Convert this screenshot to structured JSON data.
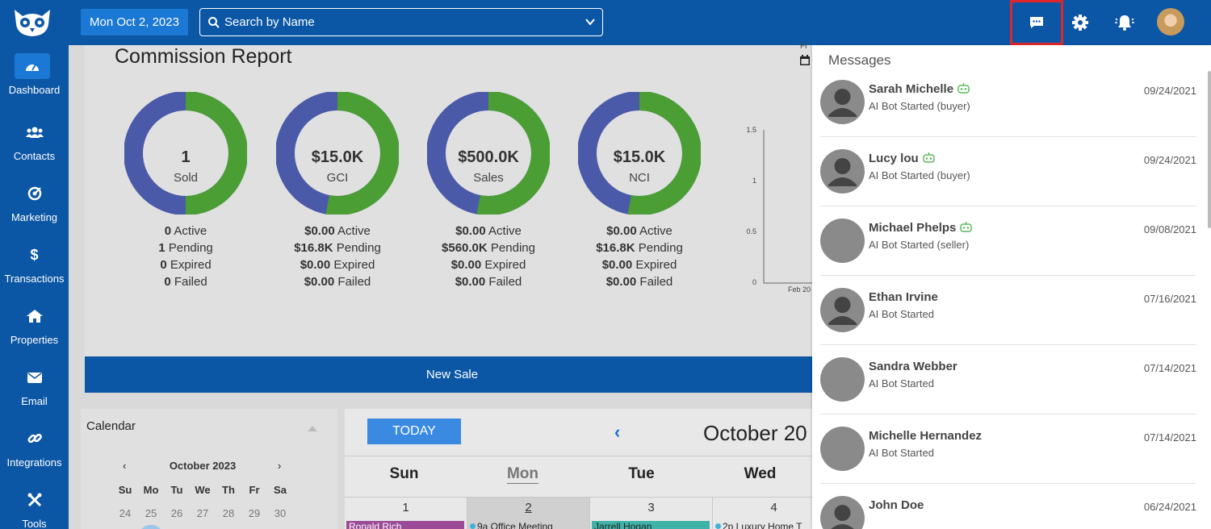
{
  "header": {
    "date_label": "Mon Oct 2, 2023",
    "search_placeholder": "Search by Name"
  },
  "sidebar": {
    "items": [
      {
        "label": "Dashboard",
        "icon": "dashboard-icon"
      },
      {
        "label": "Contacts",
        "icon": "users-icon"
      },
      {
        "label": "Marketing",
        "icon": "target-icon"
      },
      {
        "label": "Transactions",
        "icon": "dollar-icon"
      },
      {
        "label": "Properties",
        "icon": "home-icon"
      },
      {
        "label": "Email",
        "icon": "envelope-icon"
      },
      {
        "label": "Integrations",
        "icon": "link-icon"
      },
      {
        "label": "Tools",
        "icon": "tools-icon"
      }
    ]
  },
  "commission": {
    "title": "Commission Report",
    "cards": [
      {
        "value": "1",
        "label": "Sold",
        "active": "0",
        "pending": "1",
        "expired": "0",
        "failed": "0",
        "green_fraction": 0.5
      },
      {
        "value": "$15.0K",
        "label": "GCI",
        "active": "$0.00",
        "pending": "$16.8K",
        "expired": "$0.00",
        "failed": "$0.00",
        "green_fraction": 0.53
      },
      {
        "value": "$500.0K",
        "label": "Sales",
        "active": "$0.00",
        "pending": "$560.0K",
        "expired": "$0.00",
        "failed": "$0.00",
        "green_fraction": 0.53
      },
      {
        "value": "$15.0K",
        "label": "NCI",
        "active": "$0.00",
        "pending": "$16.8K",
        "expired": "$0.00",
        "failed": "$0.00",
        "green_fraction": 0.53
      }
    ],
    "stat_labels": {
      "active": "Active",
      "pending": "Pending",
      "expired": "Expired",
      "failed": "Failed"
    },
    "mini_chart": {
      "y_ticks": [
        "1.5",
        "1",
        "0.5",
        "0"
      ],
      "x_label": "Feb 20"
    },
    "from_label": "Fr",
    "new_sale": "New Sale",
    "colors": {
      "green": "#4a9e34",
      "blue": "#4b5aa8"
    }
  },
  "mini_calendar": {
    "title": "Calendar",
    "month": "October 2023",
    "prev": "‹",
    "next": "›",
    "weekdays": [
      "Su",
      "Mo",
      "Tu",
      "We",
      "Th",
      "Fr",
      "Sa"
    ],
    "days": [
      "24",
      "25",
      "26",
      "27",
      "28",
      "29",
      "30"
    ]
  },
  "calendar": {
    "today": "TODAY",
    "month": "October 20",
    "days": [
      "Sun",
      "Mon",
      "Tue",
      "Wed"
    ],
    "dates": [
      "1",
      "2",
      "3",
      "4"
    ],
    "events": [
      "Ronald Rich",
      "9a Office Meeting",
      "Jarrell Hogan",
      "2p Luxury Home T"
    ]
  },
  "messages": {
    "title": "Messages",
    "items": [
      {
        "name": "Sarah Michelle",
        "sub": "AI Bot Started (buyer)",
        "date": "09/24/2021",
        "bot": true,
        "photo": false
      },
      {
        "name": "Lucy lou",
        "sub": "AI Bot Started (buyer)",
        "date": "09/24/2021",
        "bot": true,
        "photo": false
      },
      {
        "name": "Michael Phelps",
        "sub": "AI Bot Started (seller)",
        "date": "09/08/2021",
        "bot": true,
        "photo": true
      },
      {
        "name": "Ethan Irvine",
        "sub": "AI Bot Started",
        "date": "07/16/2021",
        "bot": false,
        "photo": false
      },
      {
        "name": "Sandra Webber",
        "sub": "AI Bot Started",
        "date": "07/14/2021",
        "bot": false,
        "photo": true
      },
      {
        "name": "Michelle Hernandez",
        "sub": "AI Bot Started",
        "date": "07/14/2021",
        "bot": false,
        "photo": true
      },
      {
        "name": "John Doe",
        "sub": "",
        "date": "06/24/2021",
        "bot": false,
        "photo": false
      }
    ]
  }
}
